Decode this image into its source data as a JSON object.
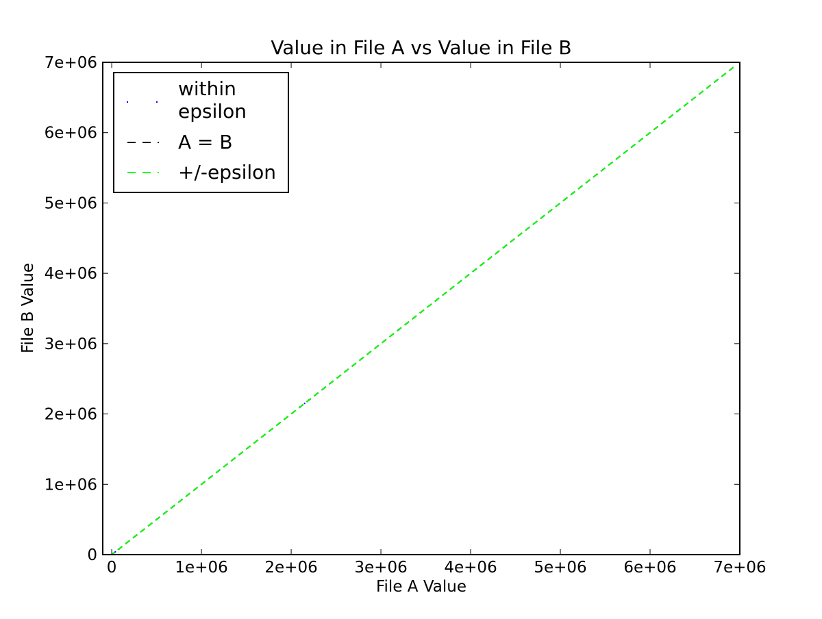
{
  "chart_data": {
    "type": "scatter",
    "title": "Value in File A vs Value in File B",
    "xlabel": "File A Value",
    "ylabel": "File B Value",
    "xlim": [
      -100000,
      7000000
    ],
    "ylim": [
      0,
      7000000
    ],
    "x_ticks": [
      0,
      1000000,
      2000000,
      3000000,
      4000000,
      5000000,
      6000000,
      7000000
    ],
    "x_tick_labels": [
      "0",
      "1e+06",
      "2e+06",
      "3e+06",
      "4e+06",
      "5e+06",
      "6e+06",
      "7e+06"
    ],
    "y_ticks": [
      0,
      1000000,
      2000000,
      3000000,
      4000000,
      5000000,
      6000000,
      7000000
    ],
    "y_tick_labels": [
      "0",
      "1e+06",
      "2e+06",
      "3e+06",
      "4e+06",
      "5e+06",
      "6e+06",
      "7e+06"
    ],
    "grid": false,
    "legend_position": "top-left",
    "series": [
      {
        "name": "within\nepsilon",
        "kind": "points",
        "color": "#0000ff",
        "points": [
          [
            10000,
            10000
          ],
          [
            20000,
            20000
          ],
          [
            40000,
            40000
          ],
          [
            80000,
            80000
          ],
          [
            1100000,
            1100000
          ],
          [
            2100000,
            2100000
          ],
          [
            2150000,
            2150000
          ],
          [
            2200000,
            2200000
          ],
          [
            3200000,
            3200000
          ],
          [
            6300000,
            6300000
          ]
        ]
      },
      {
        "name": "A = B",
        "kind": "dashed-line",
        "color": "#000000",
        "x": [
          -100000,
          6950000
        ],
        "y": [
          -100000,
          6950000
        ]
      },
      {
        "name": "+/-epsilon",
        "kind": "dashed-line",
        "color": "#00ff00",
        "x": [
          -100000,
          6950000
        ],
        "y": [
          -100000,
          6950000
        ]
      }
    ]
  }
}
